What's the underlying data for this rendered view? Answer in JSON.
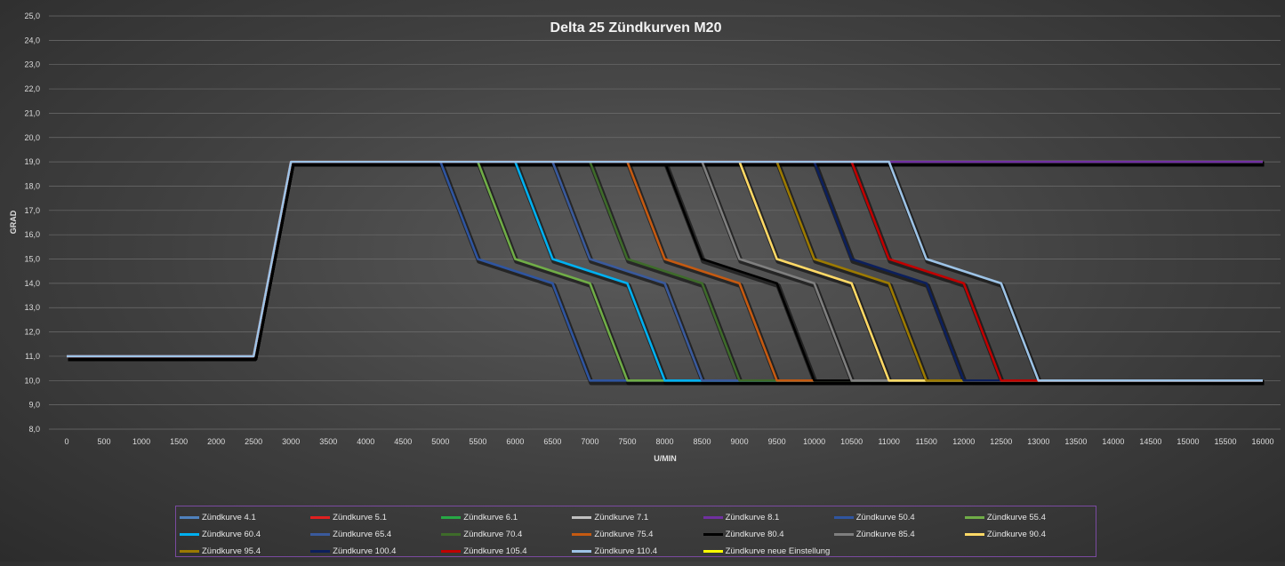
{
  "chart_data": {
    "type": "line",
    "title": "Delta 25 Zündkurven M20",
    "xlabel": "U/MIN",
    "ylabel": "GRAD",
    "xlim": [
      0,
      16000
    ],
    "ylim": [
      8,
      25
    ],
    "x_ticks": [
      "0",
      "500",
      "1000",
      "1500",
      "2000",
      "2500",
      "3000",
      "3500",
      "4000",
      "4500",
      "5000",
      "5500",
      "6000",
      "6500",
      "7000",
      "7500",
      "8000",
      "8500",
      "9000",
      "9500",
      "10000",
      "10500",
      "11000",
      "11500",
      "12000",
      "12500",
      "13000",
      "13500",
      "14000",
      "14500",
      "15000",
      "15500",
      "16000"
    ],
    "y_ticks": [
      "8,0",
      "9,0",
      "10,0",
      "11,0",
      "12,0",
      "13,0",
      "14,0",
      "15,0",
      "16,0",
      "17,0",
      "18,0",
      "19,0",
      "20,0",
      "21,0",
      "22,0",
      "23,0",
      "24,0",
      "25,0"
    ],
    "grid": "horizontal",
    "legend": "bottom",
    "series": [
      {
        "name": "Zündkurve 4.1",
        "color": "#4f81bd",
        "x": [
          0,
          2500,
          3000,
          16000
        ],
        "y": [
          11,
          11,
          19,
          19
        ]
      },
      {
        "name": "Zündkurve 5.1",
        "color": "#e02020",
        "x": [
          0,
          2500,
          3000,
          16000
        ],
        "y": [
          11,
          11,
          19,
          19
        ]
      },
      {
        "name": "Zündkurve 6.1",
        "color": "#27a845",
        "x": [
          0,
          2500,
          3000,
          16000
        ],
        "y": [
          11,
          11,
          19,
          19
        ]
      },
      {
        "name": "Zündkurve 7.1",
        "color": "#bfbfbf",
        "x": [
          0,
          2500,
          3000,
          16000
        ],
        "y": [
          11,
          11,
          19,
          19
        ]
      },
      {
        "name": "Zündkurve 8.1",
        "color": "#7030a0",
        "x": [
          0,
          2500,
          3000,
          16000
        ],
        "y": [
          11,
          11,
          19,
          19
        ]
      },
      {
        "name": "Zündkurve 50.4",
        "color": "#2f55a0",
        "x": [
          0,
          2500,
          3000,
          5000,
          5500,
          6500,
          7000,
          16000
        ],
        "y": [
          11,
          11,
          19,
          19,
          15,
          14,
          10,
          10
        ]
      },
      {
        "name": "Zündkurve 55.4",
        "color": "#70ad47",
        "x": [
          0,
          2500,
          3000,
          5500,
          6000,
          7000,
          7500,
          16000
        ],
        "y": [
          11,
          11,
          19,
          19,
          15,
          14,
          10,
          10
        ]
      },
      {
        "name": "Zündkurve 60.4",
        "color": "#00b0f0",
        "x": [
          0,
          2500,
          3000,
          6000,
          6500,
          7500,
          8000,
          16000
        ],
        "y": [
          11,
          11,
          19,
          19,
          15,
          14,
          10,
          10
        ]
      },
      {
        "name": "Zündkurve 65.4",
        "color": "#3a5a9c",
        "x": [
          0,
          2500,
          3000,
          6500,
          7000,
          8000,
          8500,
          16000
        ],
        "y": [
          11,
          11,
          19,
          19,
          15,
          14,
          10,
          10
        ]
      },
      {
        "name": "Zündkurve 70.4",
        "color": "#3e6b2a",
        "x": [
          0,
          2500,
          3000,
          7000,
          7500,
          8500,
          9000,
          16000
        ],
        "y": [
          11,
          11,
          19,
          19,
          15,
          14,
          10,
          10
        ]
      },
      {
        "name": "Zündkurve 75.4",
        "color": "#c55a11",
        "x": [
          0,
          2500,
          3000,
          7500,
          8000,
          9000,
          9500,
          16000
        ],
        "y": [
          11,
          11,
          19,
          19,
          15,
          14,
          10,
          10
        ]
      },
      {
        "name": "Zündkurve 80.4",
        "color": "#000000",
        "x": [
          0,
          2500,
          3000,
          8000,
          8500,
          9500,
          10000,
          16000
        ],
        "y": [
          11,
          11,
          19,
          19,
          15,
          14,
          10,
          10
        ]
      },
      {
        "name": "Zündkurve 85.4",
        "color": "#7f7f7f",
        "x": [
          0,
          2500,
          3000,
          8500,
          9000,
          10000,
          10500,
          16000
        ],
        "y": [
          11,
          11,
          19,
          19,
          15,
          14,
          10,
          10
        ]
      },
      {
        "name": "Zündkurve 90.4",
        "color": "#ffd966",
        "x": [
          0,
          2500,
          3000,
          9000,
          9500,
          10500,
          11000,
          16000
        ],
        "y": [
          11,
          11,
          19,
          19,
          15,
          14,
          10,
          10
        ]
      },
      {
        "name": "Zündkurve 95.4",
        "color": "#9c7a00",
        "x": [
          0,
          2500,
          3000,
          9500,
          10000,
          11000,
          11500,
          16000
        ],
        "y": [
          11,
          11,
          19,
          19,
          15,
          14,
          10,
          10
        ]
      },
      {
        "name": "Zündkurve 100.4",
        "color": "#0c1f5c",
        "x": [
          0,
          2500,
          3000,
          10000,
          10500,
          11500,
          12000,
          16000
        ],
        "y": [
          11,
          11,
          19,
          19,
          15,
          14,
          10,
          10
        ]
      },
      {
        "name": "Zündkurve 105.4",
        "color": "#c00000",
        "x": [
          0,
          2500,
          3000,
          10500,
          11000,
          12000,
          12500,
          16000
        ],
        "y": [
          11,
          11,
          19,
          19,
          15,
          14,
          10,
          10
        ]
      },
      {
        "name": "Zündkurve 110.4",
        "color": "#9dc3e6",
        "x": [
          0,
          2500,
          3000,
          11000,
          11500,
          12500,
          13000,
          16000
        ],
        "y": [
          11,
          11,
          19,
          19,
          15,
          14,
          10,
          10
        ]
      },
      {
        "name": "Zündkurve neue Einstellung",
        "color": "#ffff00",
        "x": [],
        "y": []
      }
    ]
  }
}
